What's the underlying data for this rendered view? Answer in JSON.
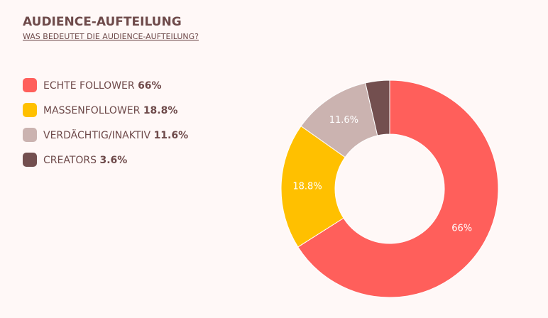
{
  "chart_data": {
    "type": "donut",
    "title": "AUDIENCE-AUFTEILUNG",
    "subtitle": "WAS BEDEUTET DIE AUDIENCE-AUFTEILUNG?",
    "categories": [
      "ECHTE FOLLOWER",
      "MASSENFOLLOWER",
      "VERDÄCHTIG/INAKTIV",
      "CREATORS"
    ],
    "values": [
      66,
      18.8,
      11.6,
      3.6
    ],
    "value_labels": [
      "66%",
      "18.8%",
      "11.6%",
      "3.6%"
    ],
    "colors": [
      "#ff5f5b",
      "#ffc000",
      "#cbb3b0",
      "#734f4f"
    ],
    "legend": "left"
  }
}
